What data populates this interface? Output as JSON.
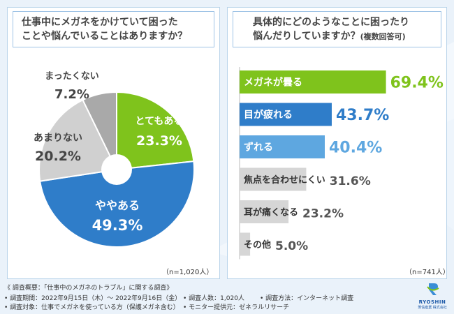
{
  "left_panel": {
    "question_line1": "仕事中にメガネをかけていて困った",
    "question_line2": "ことや悩んでいることはありますか？",
    "n_label": "（n=1,020人）"
  },
  "right_panel": {
    "question_line1": "具体的にどのようなことに困ったり",
    "question_line2": "悩んだりしていますか？",
    "question_note": "(複数回答可)",
    "n_label": "（n=741人）"
  },
  "chart_data": [
    {
      "type": "pie",
      "title": "仕事中にメガネをかけていて困ったことや悩んでいることはありますか？",
      "slices": [
        {
          "label": "とてもある",
          "value": 23.3,
          "display": "23.3%",
          "color": "#7fc31c"
        },
        {
          "label": "ややある",
          "value": 49.3,
          "display": "49.3%",
          "color": "#2f7dc9"
        },
        {
          "label": "あまりない",
          "value": 20.2,
          "display": "20.2%",
          "color": "#d0d0d0"
        },
        {
          "label": "まったくない",
          "value": 7.2,
          "display": "7.2%",
          "color": "#a9a9a9"
        }
      ],
      "n": "n=1,020人"
    },
    {
      "type": "bar",
      "orientation": "horizontal",
      "title": "具体的にどのようなことに困ったり悩んだりしていますか？(複数回答可)",
      "categories": [
        "メガネが曇る",
        "目が疲れる",
        "ずれる",
        "焦点を合わせにくい",
        "耳が痛くなる",
        "その他"
      ],
      "values": [
        69.4,
        43.7,
        40.4,
        31.6,
        23.2,
        5.0
      ],
      "display": [
        "69.4%",
        "43.7%",
        "40.4%",
        "31.6%",
        "23.2%",
        "5.0%"
      ],
      "colors": [
        "#7fc31c",
        "#2f7dc9",
        "#5ea7e0",
        "#d6d6d6",
        "#d6d6d6",
        "#d6d6d6"
      ],
      "label_colors": [
        "#ffffff",
        "#ffffff",
        "#ffffff",
        "#333333",
        "#333333",
        "#333333"
      ],
      "value_colors": [
        "#7fc31c",
        "#2f7dc9",
        "#5ea7e0",
        "#555555",
        "#555555",
        "#555555"
      ],
      "xlim": [
        0,
        100
      ],
      "n": "n=741人"
    }
  ],
  "footer": {
    "title": "《 調査概要：「仕事中のメガネのトラブル」に関する調査》",
    "period": "• 調査期間：2022年9月15日（木）～ 2022年9月16日（金）",
    "target": "• 調査対象：仕事でメガネを使っている方（保護メガネ含む）",
    "count": "• 調査人数：1,020人",
    "provider": "• モニター提供元：ゼネラルリサーチ",
    "method": "• 調査方法：インターネット調査"
  },
  "logo": {
    "name": "RYOSHIN",
    "sub": "菱信産業 株式会社"
  }
}
